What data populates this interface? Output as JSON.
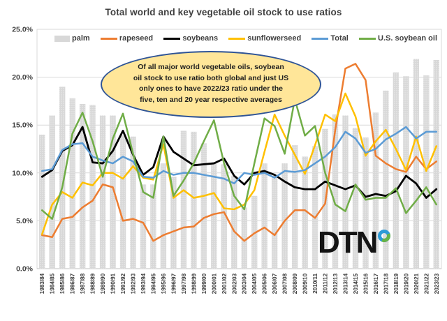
{
  "page": {
    "background": "#ffffff"
  },
  "chart_data": {
    "type": "bar",
    "subtype": "combo-bar-line",
    "title": "Total world and key vegetable oil stock to use ratios",
    "categories": [
      "1983/84",
      "1984/85",
      "1985/86",
      "1986/87",
      "1987/88",
      "1988/89",
      "1989/90",
      "1990/91",
      "1991/92",
      "1992/93",
      "1993/94",
      "1994/95",
      "1995/96",
      "1996/97",
      "1997/98",
      "1998/99",
      "1999/00",
      "2000/01",
      "2001/02",
      "2002/03",
      "2003/04",
      "2004/05",
      "2005/06",
      "2006/07",
      "2007/08",
      "2008/09",
      "2009/10",
      "2010/11",
      "2011/12",
      "2012/13",
      "2013/14",
      "2014/15",
      "2015/16",
      "2016/17",
      "2017/18",
      "2018/19",
      "2019/20",
      "2020/21",
      "2021/22",
      "2023/23"
    ],
    "series": [
      {
        "name": "palm",
        "type": "bar",
        "color": "#d8d8d8",
        "values": [
          14.0,
          16.0,
          19.0,
          17.8,
          17.2,
          17.1,
          16.0,
          16.0,
          13.9,
          13.8,
          8.8,
          8.8,
          11.0,
          9.6,
          14.4,
          14.3,
          13.1,
          11.1,
          10.9,
          9.7,
          6.4,
          7.6,
          11.0,
          9.7,
          11.0,
          12.9,
          11.7,
          12.8,
          14.6,
          16.1,
          16.0,
          14.7,
          13.7,
          16.3,
          18.6,
          20.5,
          20.1,
          21.9,
          20.2,
          21.8
        ]
      },
      {
        "name": "rapeseed",
        "type": "line",
        "color": "#ED7D31",
        "values": [
          3.5,
          3.3,
          5.2,
          5.4,
          6.4,
          7.1,
          8.8,
          8.5,
          5.0,
          5.2,
          4.8,
          2.9,
          3.5,
          3.9,
          4.3,
          4.4,
          5.3,
          5.7,
          5.9,
          3.9,
          2.9,
          3.7,
          4.3,
          3.5,
          5.0,
          6.1,
          6.1,
          5.3,
          6.8,
          14.5,
          20.9,
          21.4,
          19.7,
          11.8,
          11.0,
          10.4,
          10.1,
          11.7,
          10.4,
          11.2
        ]
      },
      {
        "name": "soybeans",
        "type": "line",
        "color": "#000000",
        "values": [
          9.6,
          10.3,
          12.3,
          12.9,
          14.8,
          11.1,
          11.0,
          12.3,
          14.4,
          11.9,
          9.8,
          10.6,
          13.8,
          12.2,
          11.5,
          10.8,
          10.9,
          11.0,
          11.5,
          9.7,
          8.8,
          10.0,
          10.2,
          9.8,
          9.1,
          8.5,
          8.3,
          8.3,
          9.1,
          8.7,
          8.3,
          8.7,
          7.5,
          7.8,
          7.6,
          8.1,
          9.7,
          8.9,
          7.4,
          8.3
        ]
      },
      {
        "name": "sunflowerseed",
        "type": "line",
        "color": "#FFC000",
        "values": [
          3.6,
          6.7,
          8.0,
          7.4,
          9.0,
          8.7,
          10.0,
          10.0,
          9.4,
          10.7,
          9.5,
          9.3,
          13.0,
          7.4,
          8.2,
          7.4,
          7.6,
          7.9,
          6.3,
          6.2,
          6.7,
          8.2,
          12.2,
          16.1,
          13.9,
          11.9,
          9.9,
          12.9,
          16.1,
          15.4,
          18.3,
          15.9,
          11.8,
          13.3,
          14.5,
          12.5,
          10.3,
          13.8,
          10.2,
          12.8
        ]
      },
      {
        "name": "Total",
        "type": "line",
        "color": "#5B9BD5",
        "values": [
          10.2,
          10.4,
          12.4,
          13.0,
          13.1,
          11.7,
          11.3,
          11.0,
          11.7,
          11.2,
          9.6,
          9.5,
          10.2,
          9.8,
          10.0,
          10.0,
          9.8,
          9.6,
          9.4,
          8.9,
          10.0,
          9.8,
          10.0,
          9.5,
          10.2,
          10.1,
          10.3,
          11.0,
          11.7,
          12.7,
          14.3,
          13.6,
          12.1,
          12.5,
          13.5,
          14.1,
          14.8,
          13.6,
          14.3,
          14.3
        ]
      },
      {
        "name": "U.S. soybean oil",
        "type": "line",
        "color": "#70AD47",
        "values": [
          6.1,
          5.2,
          8.5,
          14.1,
          16.3,
          13.3,
          9.6,
          13.6,
          16.2,
          12.0,
          8.0,
          7.4,
          13.8,
          7.6,
          9.2,
          11.0,
          13.3,
          15.5,
          11.0,
          7.6,
          6.2,
          11.0,
          15.7,
          14.9,
          12.0,
          17.7,
          13.9,
          14.9,
          10.0,
          6.7,
          6.0,
          8.8,
          7.2,
          7.4,
          7.4,
          8.4,
          5.8,
          7.1,
          8.5,
          6.7
        ]
      }
    ],
    "y_axis": {
      "min": 0,
      "max": 25,
      "step": 5,
      "tick_labels": [
        "0.0%",
        "5.0%",
        "10.0%",
        "15.0%",
        "20.0%",
        "25.0%"
      ]
    },
    "grid": true,
    "legend_position": "top",
    "colors": {
      "gridline": "#d9d9d9",
      "axis_text": "#404040",
      "plot_border": "#d9d9d9",
      "baseline": "#bfbfbf"
    }
  },
  "annotation": {
    "fill": "#FFE699",
    "border": "#2F5496",
    "lines": [
      "Of all major world vegetable oils, soybean",
      "oil stock to use ratio both global and just US",
      "only ones to have 2022/23 ratio under the",
      "five, ten and 20 year respective averages"
    ]
  },
  "logo": {
    "text": "DTN",
    "ring_blue": "#2E9BD6",
    "ring_green": "#67B346"
  }
}
